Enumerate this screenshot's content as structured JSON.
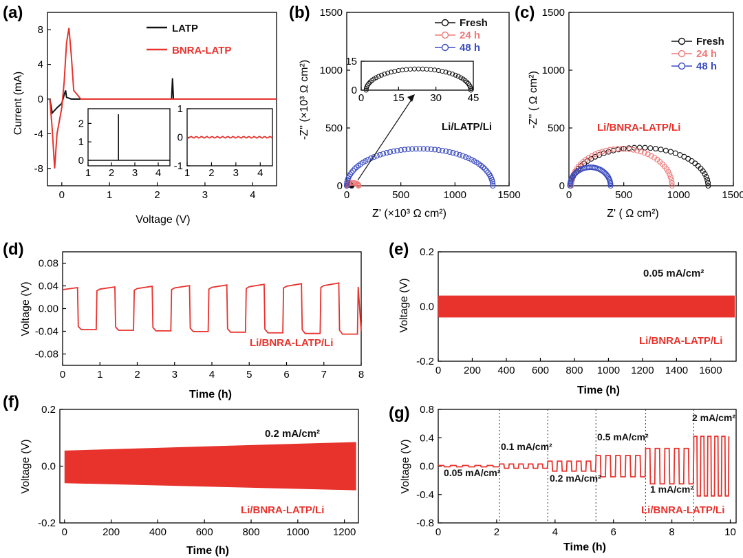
{
  "colors": {
    "red": "#e8322c",
    "black": "#111111",
    "pink": "#f07878",
    "blue": "#3b4cc0"
  },
  "panels": {
    "a": {
      "label": "(a)",
      "xlabel": "Voltage (V)",
      "ylabel": "Current (mA)",
      "legend": [
        "LATP",
        "BNRA-LATP"
      ]
    },
    "b": {
      "label": "(b)",
      "xlabel": "Z' (×10³ Ω cm²)",
      "ylabel": "-Z'' (×10³ Ω cm²)",
      "legend": [
        "Fresh",
        "24 h",
        "48 h"
      ],
      "annotation": "Li/LATP/Li"
    },
    "c": {
      "label": "(c)",
      "xlabel": "Z' ( Ω cm²)",
      "ylabel": "-Z'' ( Ω cm²)",
      "legend": [
        "Fresh",
        "24 h",
        "48 h"
      ],
      "annotation": "Li/BNRA-LATP/Li"
    },
    "d": {
      "label": "(d)",
      "xlabel": "Time (h)",
      "ylabel": "Voltage (V)",
      "annotation": "Li/BNRA-LATP/Li"
    },
    "e": {
      "label": "(e)",
      "xlabel": "Time (h)",
      "ylabel": "Voltage (V)",
      "annotation": "Li/BNRA-LATP/Li",
      "current": "0.05 mA/cm²"
    },
    "f": {
      "label": "(f)",
      "xlabel": "Time (h)",
      "ylabel": "Voltage (V)",
      "annotation": "Li/BNRA-LATP/Li",
      "current": "0.2 mA/cm²"
    },
    "g": {
      "label": "(g)",
      "xlabel": "Time (h)",
      "ylabel": "Voltage (V)",
      "annotation": "Li/BNRA-LATP/Li",
      "rates": [
        "0.05 mA/cm²",
        "0.1 mA/cm²",
        "0.2 mA/cm²",
        "0.5 mA/cm²",
        "1 mA/cm²",
        "2 mA/cm²"
      ]
    }
  },
  "chart_data": [
    {
      "panel": "a",
      "type": "line",
      "xlim": [
        -0.3,
        4.5
      ],
      "ylim": [
        -10,
        10
      ],
      "xticks": [
        "0",
        "1",
        "2",
        "3",
        "4"
      ],
      "yticks": [
        "-8",
        "-4",
        "0",
        "4",
        "8"
      ],
      "series": [
        {
          "name": "LATP",
          "x": [
            -0.25,
            -0.2,
            -0.1,
            0.0,
            0.05,
            0.08,
            0.1,
            0.2,
            1.0,
            2.3,
            2.32,
            2.34,
            3.0,
            4.5
          ],
          "y": [
            0,
            -1.6,
            -1.0,
            -0.5,
            0.5,
            1.0,
            0.2,
            0,
            0,
            0,
            2.4,
            0,
            0,
            0
          ]
        },
        {
          "name": "BNRA-LATP",
          "x": [
            -0.25,
            -0.2,
            -0.15,
            -0.1,
            0.0,
            0.05,
            0.1,
            0.15,
            0.2,
            0.25,
            0.4,
            1.0,
            4.5
          ],
          "y": [
            0,
            -3.5,
            -8.0,
            -4.0,
            -1.0,
            2.0,
            6.5,
            8.2,
            5.0,
            1.0,
            0,
            0,
            0
          ]
        }
      ],
      "insets": [
        {
          "xlim": [
            1,
            4.5
          ],
          "ylim": [
            -0.3,
            2.8
          ],
          "xticks": [
            "1",
            "2",
            "3",
            "4"
          ],
          "yticks": [
            "0",
            "1",
            "2"
          ],
          "series": [
            {
              "name": "LATP",
              "spike_x": 2.3,
              "spike_y": 2.5
            }
          ]
        },
        {
          "xlim": [
            1,
            4.5
          ],
          "ylim": [
            -1,
            1
          ],
          "xticks": [
            "1",
            "2",
            "3",
            "4"
          ],
          "yticks": [
            "-1",
            "0",
            "1"
          ],
          "series": [
            {
              "name": "BNRA-LATP",
              "level": 0.0
            }
          ]
        }
      ]
    },
    {
      "panel": "b",
      "type": "scatter",
      "xlim": [
        0,
        1500
      ],
      "ylim": [
        0,
        1500
      ],
      "xticks": [
        "0",
        "500",
        "1000",
        "1500"
      ],
      "yticks": [
        "0",
        "500",
        "1000",
        "1500"
      ],
      "series": [
        {
          "name": "Fresh",
          "arc": [
            0,
            45
          ],
          "height": 10
        },
        {
          "name": "24 h",
          "arc": [
            0,
            110
          ],
          "height": 25
        },
        {
          "name": "48 h",
          "arc": [
            0,
            1350
          ],
          "height": 320
        }
      ],
      "inset": {
        "xlim": [
          0,
          45
        ],
        "ylim": [
          0,
          15
        ],
        "xticks": [
          "0",
          "15",
          "30",
          "45"
        ],
        "yticks": [
          "0",
          "15"
        ],
        "series": [
          {
            "name": "Fresh",
            "arc": [
              2,
              44
            ],
            "height": 11
          }
        ]
      }
    },
    {
      "panel": "c",
      "type": "scatter",
      "xlim": [
        0,
        1500
      ],
      "ylim": [
        0,
        1500
      ],
      "xticks": [
        "0",
        "500",
        "1000",
        "1500"
      ],
      "yticks": [
        "0",
        "500",
        "1000",
        "1500"
      ],
      "series": [
        {
          "name": "Fresh",
          "arc": [
            20,
            1270
          ],
          "height": 330
        },
        {
          "name": "24 h",
          "arc": [
            20,
            940
          ],
          "height": 320
        },
        {
          "name": "48 h",
          "arc": [
            10,
            380
          ],
          "height": 160
        }
      ]
    },
    {
      "panel": "d",
      "type": "line",
      "xlim": [
        0,
        8
      ],
      "ylim": [
        -0.1,
        0.1
      ],
      "xticks": [
        "0",
        "1",
        "2",
        "3",
        "4",
        "5",
        "6",
        "7",
        "8"
      ],
      "yticks": [
        "-0.08",
        "-0.04",
        "0.00",
        "0.04",
        "0.08"
      ],
      "series": [
        {
          "name": "Li/BNRA-LATP/Li",
          "period_h": 1.0,
          "amplitude_start": 0.037,
          "amplitude_end": 0.045
        }
      ]
    },
    {
      "panel": "e",
      "type": "area",
      "xlim": [
        0,
        1750
      ],
      "ylim": [
        -0.2,
        0.2
      ],
      "xticks": [
        "0",
        "200",
        "400",
        "600",
        "800",
        "1000",
        "1200",
        "1400",
        "1600"
      ],
      "yticks": [
        "-0.2",
        "0.0",
        "0.2"
      ],
      "series": [
        {
          "name": "Li/BNRA-LATP/Li",
          "upper": 0.04,
          "lower": -0.04
        }
      ]
    },
    {
      "panel": "f",
      "type": "area",
      "xlim": [
        -20,
        1260
      ],
      "ylim": [
        -0.2,
        0.2
      ],
      "xticks": [
        "0",
        "200",
        "400",
        "600",
        "800",
        "1000",
        "1200"
      ],
      "yticks": [
        "-0.2",
        "0.0",
        "0.2"
      ],
      "series": [
        {
          "name": "Li/BNRA-LATP/Li",
          "upper_start": 0.055,
          "upper_end": 0.085,
          "lower_start": -0.06,
          "lower_end": -0.085
        }
      ]
    },
    {
      "panel": "g",
      "type": "line",
      "xlim": [
        0,
        10.2
      ],
      "ylim": [
        -0.8,
        0.8
      ],
      "xticks": [
        "0",
        "2",
        "4",
        "6",
        "8",
        "10"
      ],
      "yticks": [
        "-0.8",
        "-0.4",
        "0.0",
        "0.4",
        "0.8"
      ],
      "segment_boundaries_h": [
        2.1,
        3.75,
        5.4,
        7.1,
        8.75
      ],
      "series": [
        {
          "name": "Li/BNRA-LATP/Li",
          "amplitudes": [
            0.01,
            0.03,
            0.07,
            0.15,
            0.25,
            0.42
          ]
        }
      ]
    }
  ]
}
